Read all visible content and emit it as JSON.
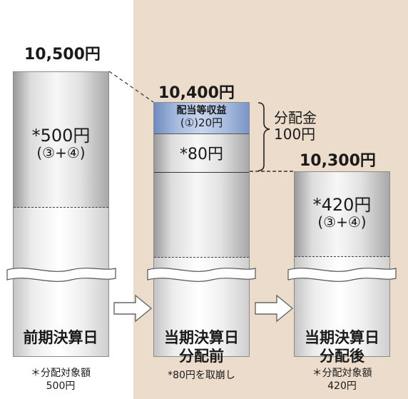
{
  "columns": [
    {
      "price": "10,500円",
      "inner_main": "*500円",
      "inner_sub": "(③+④)",
      "date": "前期決算日",
      "note_line1": "＊分配対象額",
      "note_line2": "500円"
    },
    {
      "price": "10,400円",
      "dividend_line1": "配当等収益",
      "dividend_line2": "(①)20円",
      "inner_main": "*80円",
      "date_line1": "当期決算日",
      "date_line2": "分配前",
      "note_line1": "*80円を取崩し"
    },
    {
      "price": "10,300円",
      "inner_main": "*420円",
      "inner_sub": "(③+④)",
      "date_line1": "当期決算日",
      "date_line2": "分配後",
      "note_line1": "＊分配対象額",
      "note_line2": "420円"
    }
  ],
  "distribution": {
    "line1": "分配金",
    "line2": "100円"
  },
  "colors": {
    "background_panel": "#ebdccb",
    "dividend_block": "#a9bde0"
  }
}
